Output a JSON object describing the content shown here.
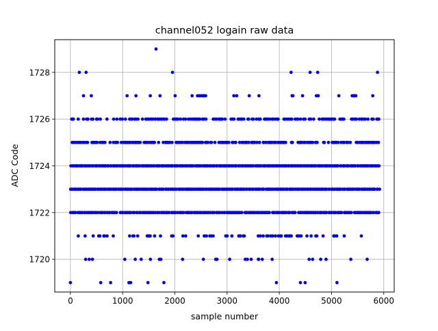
{
  "chart_data": {
    "type": "scatter",
    "title": "channel052 logain raw data",
    "xlabel": "sample number",
    "ylabel": "ADC Code",
    "xlim": [
      -300,
      6200
    ],
    "ylim": [
      1718.6,
      1729.4
    ],
    "xticks": [
      0,
      1000,
      2000,
      3000,
      4000,
      5000,
      6000
    ],
    "xtick_labels": [
      "0",
      "1000",
      "2000",
      "3000",
      "4000",
      "5000",
      "6000"
    ],
    "yticks": [
      1720,
      1722,
      1724,
      1726,
      1728
    ],
    "ytick_labels": [
      "1720",
      "1722",
      "1724",
      "1726",
      "1728"
    ],
    "grid": true,
    "marker_color": "#0000ff",
    "n_samples": 5920,
    "levels": [
      {
        "y": 1729,
        "x": [
          1640
        ]
      },
      {
        "y": 1728,
        "x": [
          170,
          300,
          1955,
          4225,
          4590,
          4735,
          5880
        ]
      },
      {
        "y": 1727,
        "x": [
          250,
          400,
          1085,
          1255,
          1530,
          1715,
          2005,
          2330,
          2435,
          2470,
          2505,
          2535,
          2555,
          2590,
          3130,
          3185,
          3425,
          3610,
          4245,
          4260,
          4445,
          4710,
          4745,
          5140,
          5395,
          5420,
          5440,
          5465,
          5790
        ]
      },
      {
        "y": 1726,
        "density": 0.55
      },
      {
        "y": 1725,
        "density": 0.7
      },
      {
        "y": 1724,
        "density": 1.0
      },
      {
        "y": 1723,
        "density": 1.0
      },
      {
        "y": 1722,
        "density": 0.9
      },
      {
        "y": 1721,
        "density": 0.28
      },
      {
        "y": 1720,
        "density": 0.14
      },
      {
        "y": 1719,
        "x": [
          0,
          580,
          770,
          1120,
          1155,
          1485,
          1790,
          3945,
          4405,
          4495,
          5105
        ]
      }
    ]
  }
}
